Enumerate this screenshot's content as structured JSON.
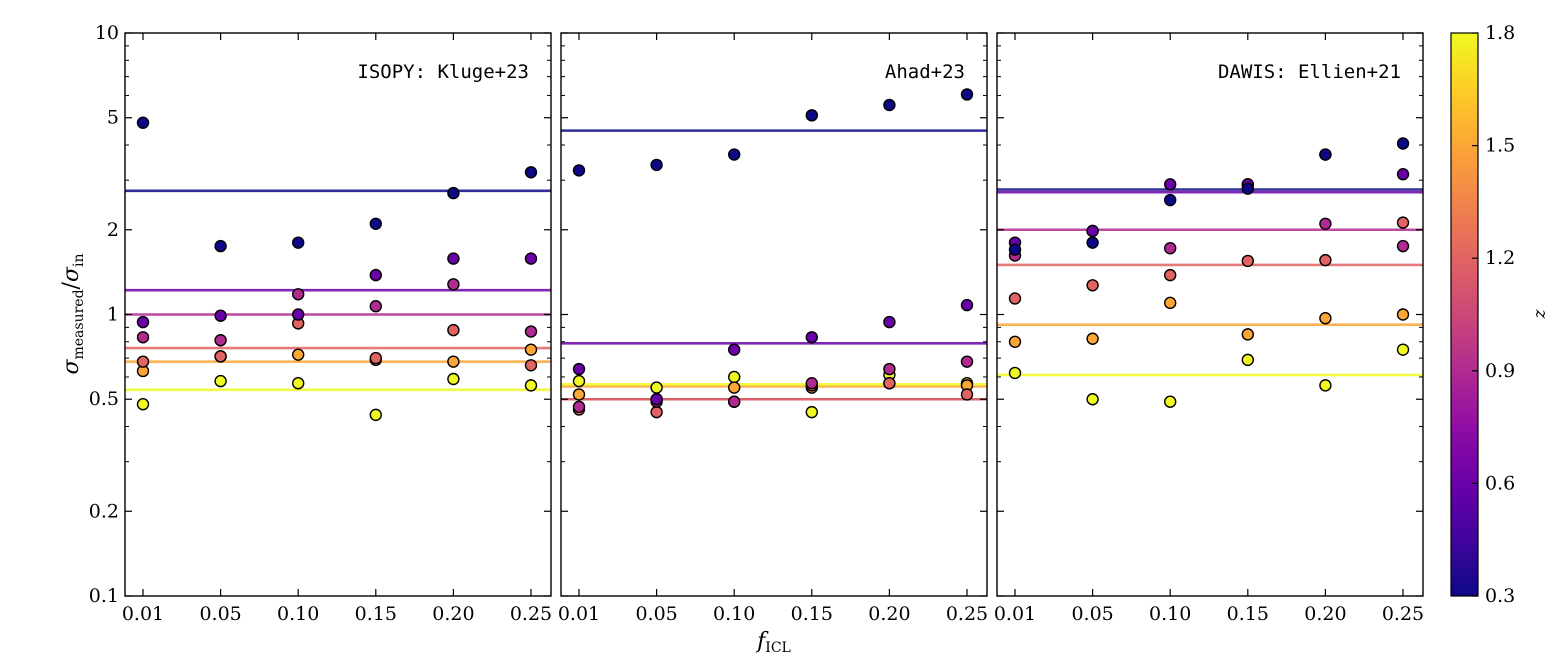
{
  "chart_data": {
    "type": "scatter",
    "x_categories": [
      "0.01",
      "0.05",
      "0.10",
      "0.15",
      "0.20",
      "0.25"
    ],
    "x_values": [
      0.01,
      0.05,
      0.1,
      0.15,
      0.2,
      0.25
    ],
    "xlabel_main": "f",
    "xlabel_sub": "ICL",
    "ylabel_main": "σ",
    "ylabel_sub_num": "measured",
    "ylabel_sub_den": "in",
    "ylabel_sep": "/",
    "ylabel_den_main": "σ",
    "yscale": "log",
    "ylim": [
      0.1,
      10
    ],
    "yticks": [
      0.1,
      0.2,
      0.5,
      1,
      2,
      5,
      10
    ],
    "ytick_labels": [
      "0.1",
      "0.2",
      "0.5",
      "1",
      "2",
      "5",
      "10"
    ],
    "colorbar": {
      "label": "z",
      "range": [
        0.3,
        1.8
      ],
      "ticks": [
        0.3,
        0.6,
        0.9,
        1.2,
        1.5,
        1.8
      ],
      "tick_labels": [
        "0.3",
        "0.6",
        "0.9",
        "1.2",
        "1.5",
        "1.8"
      ],
      "colormap": [
        "#0d0887",
        "#41049d",
        "#6a00a8",
        "#8f0da4",
        "#b12a90",
        "#cc4778",
        "#e16462",
        "#f2844b",
        "#fca636",
        "#fcce25",
        "#f0f921"
      ]
    },
    "panels": [
      {
        "title": "ISOPY: Kluge+23",
        "series": [
          {
            "z": 0.3,
            "values": [
              4.8,
              1.75,
              1.8,
              2.1,
              2.7,
              3.2
            ],
            "line": 2.75
          },
          {
            "z": 0.6,
            "values": [
              0.94,
              0.99,
              1.0,
              1.38,
              1.58,
              1.58
            ],
            "line": 1.22
          },
          {
            "z": 0.9,
            "values": [
              0.83,
              0.81,
              1.18,
              1.07,
              1.28,
              0.87
            ],
            "line": 1.0
          },
          {
            "z": 1.2,
            "values": [
              0.68,
              0.71,
              0.93,
              0.7,
              0.88,
              0.66
            ],
            "line": 0.76
          },
          {
            "z": 1.5,
            "values": [
              0.63,
              0.71,
              0.72,
              0.69,
              0.68,
              0.75
            ],
            "line": 0.68
          },
          {
            "z": 1.8,
            "values": [
              0.48,
              0.58,
              0.57,
              0.44,
              0.59,
              0.56
            ],
            "line": 0.54
          }
        ]
      },
      {
        "title": "Ahad+23",
        "series": [
          {
            "z": 0.3,
            "values": [
              3.25,
              3.4,
              3.7,
              5.1,
              5.55,
              6.05
            ],
            "line": 4.5
          },
          {
            "z": 0.6,
            "values": [
              0.64,
              0.5,
              0.75,
              0.83,
              0.94,
              1.08
            ],
            "line": 0.79
          },
          {
            "z": 0.9,
            "values": [
              0.47,
              0.49,
              0.49,
              0.57,
              0.64,
              0.68
            ],
            "line": 0.5
          },
          {
            "z": 1.2,
            "values": [
              0.46,
              0.45,
              0.49,
              0.56,
              0.57,
              0.52
            ],
            "line": 0.5
          },
          {
            "z": 1.5,
            "values": [
              0.52,
              0.5,
              0.55,
              0.55,
              0.57,
              0.56
            ],
            "line": 0.555
          },
          {
            "z": 1.8,
            "values": [
              0.58,
              0.55,
              0.6,
              0.45,
              0.61,
              0.57
            ],
            "line": 0.565
          }
        ]
      },
      {
        "title": "DAWIS: Ellien+21",
        "series": [
          {
            "z": 0.3,
            "values": [
              1.7,
              1.8,
              2.55,
              2.8,
              3.7,
              4.05
            ],
            "line": 2.78
          },
          {
            "z": 0.6,
            "values": [
              1.8,
              1.98,
              2.9,
              2.9,
              3.7,
              3.15
            ],
            "line": 2.72
          },
          {
            "z": 0.9,
            "values": [
              1.62,
              1.98,
              1.72,
              2.9,
              2.1,
              1.75
            ],
            "line": 2.0
          },
          {
            "z": 1.2,
            "values": [
              1.14,
              1.27,
              1.38,
              1.55,
              1.56,
              2.12
            ],
            "line": 1.5
          },
          {
            "z": 1.5,
            "values": [
              0.8,
              0.82,
              1.1,
              0.85,
              0.97,
              1.0
            ],
            "line": 0.92
          },
          {
            "z": 1.8,
            "values": [
              0.62,
              0.5,
              0.49,
              0.69,
              0.56,
              0.75
            ],
            "line": 0.61
          }
        ]
      }
    ]
  }
}
